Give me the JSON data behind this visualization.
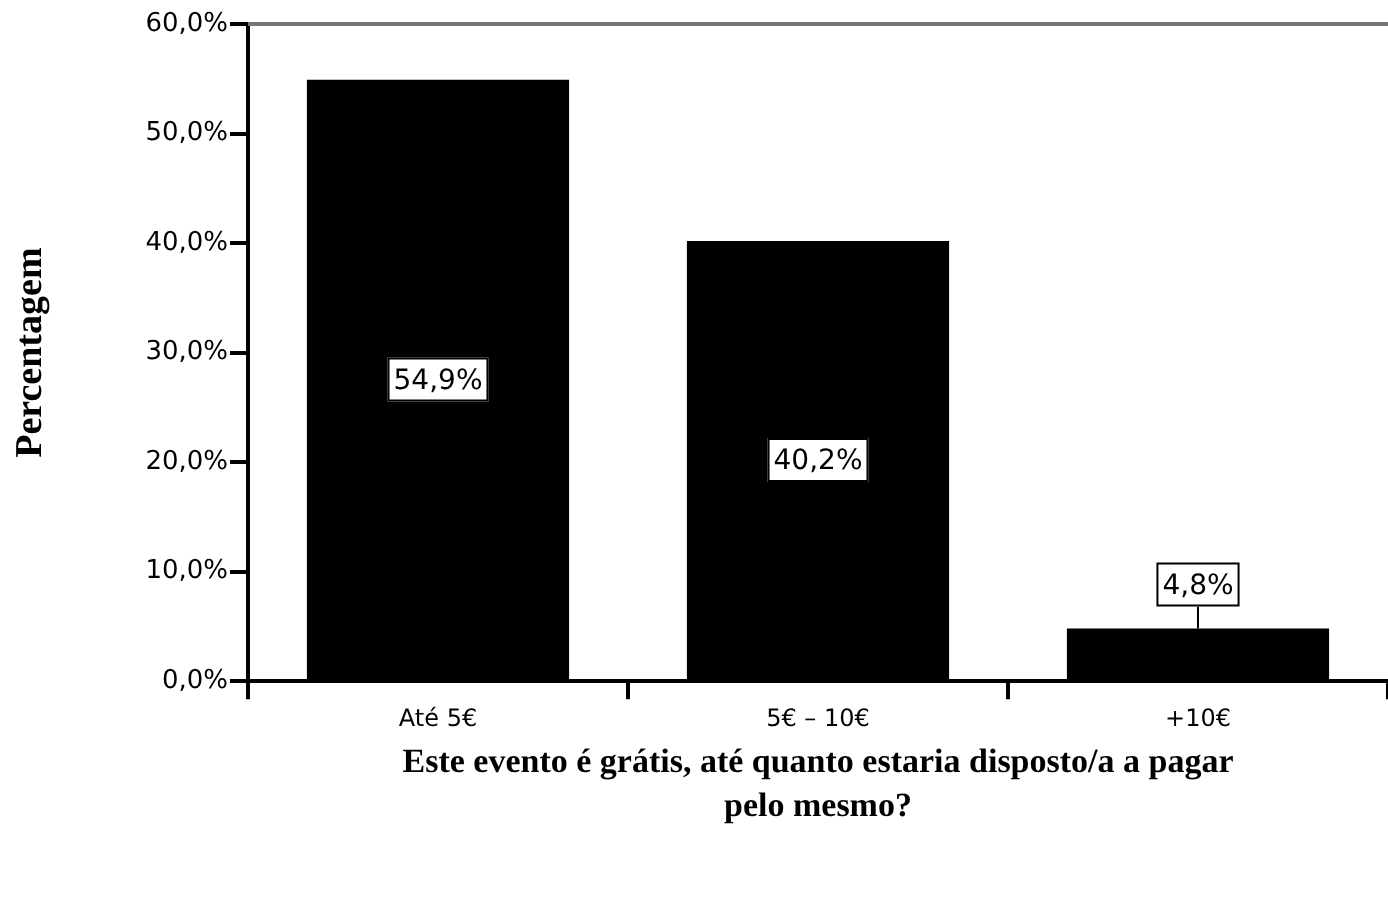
{
  "chart_data": {
    "type": "bar",
    "xlabel": "Este evento é grátis, até quanto estaria disposto/a a pagar pelo mesmo?",
    "ylabel": "Percentagem",
    "categories": [
      "Até 5€",
      "5€ – 10€",
      "+10€"
    ],
    "values": [
      54.9,
      40.2,
      4.8
    ],
    "color": "#000000",
    "value_labels": [
      "54,9%",
      "40,2%",
      "4,8%"
    ],
    "ylim": [
      0,
      60
    ],
    "yticks": [
      {
        "value": 0,
        "label": "0,0%"
      },
      {
        "value": 10,
        "label": "10,0%"
      },
      {
        "value": 20,
        "label": "20,0%"
      },
      {
        "value": 30,
        "label": "30,0%"
      },
      {
        "value": 40,
        "label": "40,0%"
      },
      {
        "value": 50,
        "label": "50,0%"
      },
      {
        "value": 60,
        "label": "60,0%"
      }
    ],
    "grid": false,
    "legend": false
  }
}
